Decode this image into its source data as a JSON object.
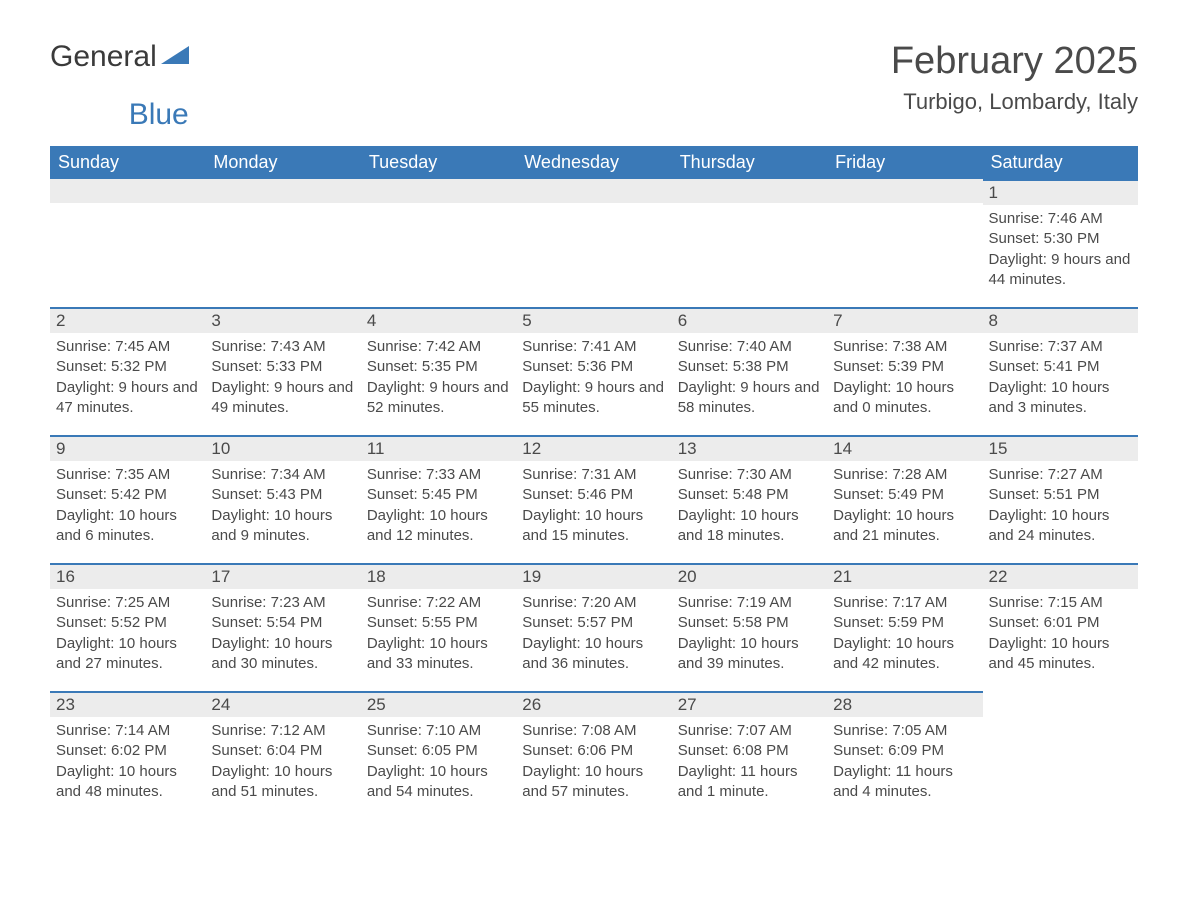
{
  "logo": {
    "word1": "General",
    "word2": "Blue"
  },
  "title": "February 2025",
  "location": "Turbigo, Lombardy, Italy",
  "colors": {
    "header_bg": "#3a79b7",
    "header_text": "#ffffff",
    "daybar_bg": "#ececec",
    "daybar_border": "#3a79b7",
    "text": "#4a4a4a",
    "page_bg": "#ffffff"
  },
  "fonts": {
    "title_size_pt": 38,
    "location_size_pt": 22,
    "header_size_pt": 18,
    "body_size_pt": 15
  },
  "weekdays": [
    "Sunday",
    "Monday",
    "Tuesday",
    "Wednesday",
    "Thursday",
    "Friday",
    "Saturday"
  ],
  "grid": {
    "first_weekday_index": 6,
    "rows": 5,
    "cols": 7
  },
  "days": [
    {
      "n": 1,
      "sunrise": "7:46 AM",
      "sunset": "5:30 PM",
      "daylight": "9 hours and 44 minutes."
    },
    {
      "n": 2,
      "sunrise": "7:45 AM",
      "sunset": "5:32 PM",
      "daylight": "9 hours and 47 minutes."
    },
    {
      "n": 3,
      "sunrise": "7:43 AM",
      "sunset": "5:33 PM",
      "daylight": "9 hours and 49 minutes."
    },
    {
      "n": 4,
      "sunrise": "7:42 AM",
      "sunset": "5:35 PM",
      "daylight": "9 hours and 52 minutes."
    },
    {
      "n": 5,
      "sunrise": "7:41 AM",
      "sunset": "5:36 PM",
      "daylight": "9 hours and 55 minutes."
    },
    {
      "n": 6,
      "sunrise": "7:40 AM",
      "sunset": "5:38 PM",
      "daylight": "9 hours and 58 minutes."
    },
    {
      "n": 7,
      "sunrise": "7:38 AM",
      "sunset": "5:39 PM",
      "daylight": "10 hours and 0 minutes."
    },
    {
      "n": 8,
      "sunrise": "7:37 AM",
      "sunset": "5:41 PM",
      "daylight": "10 hours and 3 minutes."
    },
    {
      "n": 9,
      "sunrise": "7:35 AM",
      "sunset": "5:42 PM",
      "daylight": "10 hours and 6 minutes."
    },
    {
      "n": 10,
      "sunrise": "7:34 AM",
      "sunset": "5:43 PM",
      "daylight": "10 hours and 9 minutes."
    },
    {
      "n": 11,
      "sunrise": "7:33 AM",
      "sunset": "5:45 PM",
      "daylight": "10 hours and 12 minutes."
    },
    {
      "n": 12,
      "sunrise": "7:31 AM",
      "sunset": "5:46 PM",
      "daylight": "10 hours and 15 minutes."
    },
    {
      "n": 13,
      "sunrise": "7:30 AM",
      "sunset": "5:48 PM",
      "daylight": "10 hours and 18 minutes."
    },
    {
      "n": 14,
      "sunrise": "7:28 AM",
      "sunset": "5:49 PM",
      "daylight": "10 hours and 21 minutes."
    },
    {
      "n": 15,
      "sunrise": "7:27 AM",
      "sunset": "5:51 PM",
      "daylight": "10 hours and 24 minutes."
    },
    {
      "n": 16,
      "sunrise": "7:25 AM",
      "sunset": "5:52 PM",
      "daylight": "10 hours and 27 minutes."
    },
    {
      "n": 17,
      "sunrise": "7:23 AM",
      "sunset": "5:54 PM",
      "daylight": "10 hours and 30 minutes."
    },
    {
      "n": 18,
      "sunrise": "7:22 AM",
      "sunset": "5:55 PM",
      "daylight": "10 hours and 33 minutes."
    },
    {
      "n": 19,
      "sunrise": "7:20 AM",
      "sunset": "5:57 PM",
      "daylight": "10 hours and 36 minutes."
    },
    {
      "n": 20,
      "sunrise": "7:19 AM",
      "sunset": "5:58 PM",
      "daylight": "10 hours and 39 minutes."
    },
    {
      "n": 21,
      "sunrise": "7:17 AM",
      "sunset": "5:59 PM",
      "daylight": "10 hours and 42 minutes."
    },
    {
      "n": 22,
      "sunrise": "7:15 AM",
      "sunset": "6:01 PM",
      "daylight": "10 hours and 45 minutes."
    },
    {
      "n": 23,
      "sunrise": "7:14 AM",
      "sunset": "6:02 PM",
      "daylight": "10 hours and 48 minutes."
    },
    {
      "n": 24,
      "sunrise": "7:12 AM",
      "sunset": "6:04 PM",
      "daylight": "10 hours and 51 minutes."
    },
    {
      "n": 25,
      "sunrise": "7:10 AM",
      "sunset": "6:05 PM",
      "daylight": "10 hours and 54 minutes."
    },
    {
      "n": 26,
      "sunrise": "7:08 AM",
      "sunset": "6:06 PM",
      "daylight": "10 hours and 57 minutes."
    },
    {
      "n": 27,
      "sunrise": "7:07 AM",
      "sunset": "6:08 PM",
      "daylight": "11 hours and 1 minute."
    },
    {
      "n": 28,
      "sunrise": "7:05 AM",
      "sunset": "6:09 PM",
      "daylight": "11 hours and 4 minutes."
    }
  ],
  "labels": {
    "sunrise": "Sunrise:",
    "sunset": "Sunset:",
    "daylight": "Daylight:"
  }
}
